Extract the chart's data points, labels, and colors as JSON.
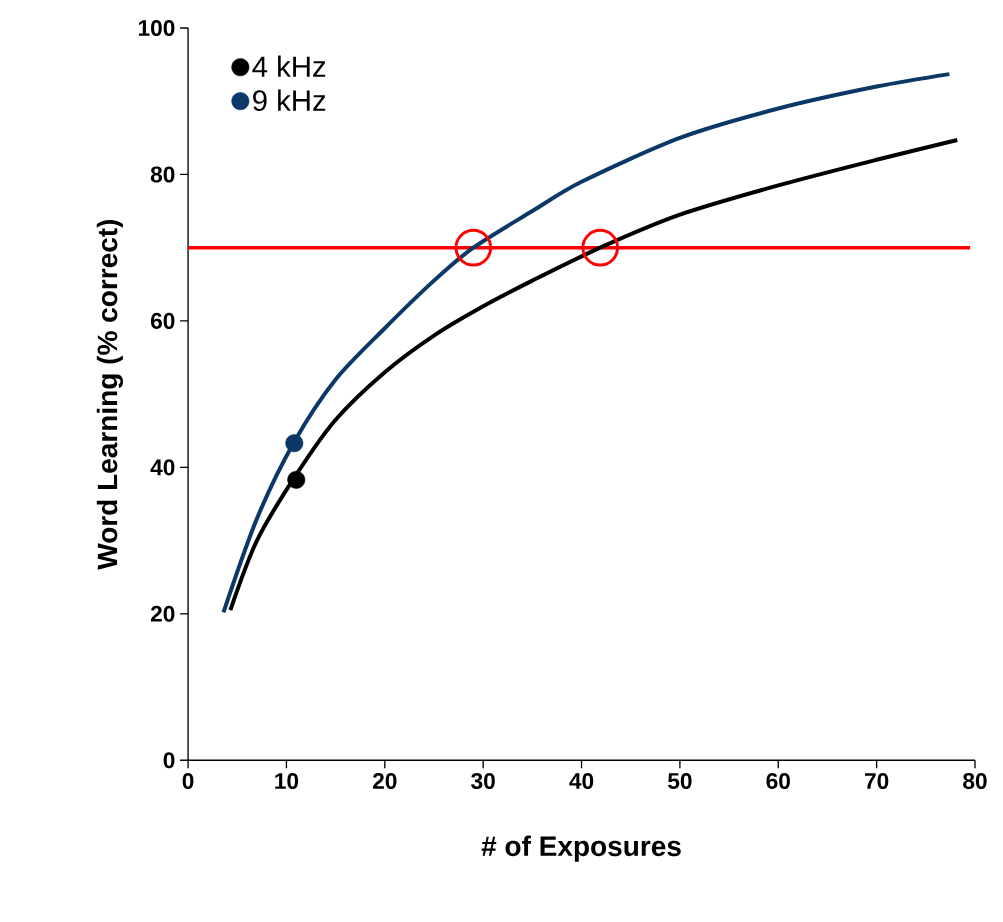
{
  "chart_data": {
    "type": "line",
    "xlabel": "# of Exposures",
    "ylabel": "Word Learning (% correct)",
    "xlim": [
      0,
      80
    ],
    "ylim": [
      0,
      100
    ],
    "xticks": [
      0,
      10,
      20,
      30,
      40,
      50,
      60,
      70,
      80
    ],
    "yticks": [
      0,
      20,
      40,
      60,
      80,
      100
    ],
    "grid": false,
    "legend": "top left",
    "series": [
      {
        "color": "#000000",
        "marker": "none",
        "x": [
          4.3,
          7,
          11,
          15,
          20,
          25,
          30,
          35,
          41.9,
          50,
          60,
          70,
          78.2
        ],
        "values": [
          20.5,
          30,
          39,
          46.5,
          53,
          58,
          62,
          65.5,
          70,
          74.5,
          78.5,
          82,
          84.7
        ]
      },
      {
        "color": "#0b3866",
        "marker": "none",
        "x": [
          3.6,
          7,
          10.8,
          15,
          20,
          25,
          29,
          35,
          40,
          50,
          60,
          70,
          77.4
        ],
        "values": [
          20.2,
          33,
          43.5,
          52,
          59,
          65.5,
          70,
          75,
          79,
          85,
          89,
          92,
          93.7
        ]
      },
      {
        "type": "scatter",
        "name": "4 kHz",
        "color": "#000000",
        "marker": "circle",
        "x": [
          11
        ],
        "values": [
          38.3
        ]
      },
      {
        "type": "scatter",
        "name": "9 kHz",
        "color": "#0b3866",
        "marker": "circle",
        "x": [
          10.8
        ],
        "values": [
          43.3
        ]
      },
      {
        "type": "scatter",
        "color": "#ff0000",
        "marker": "circle",
        "x": [
          29,
          41.9
        ],
        "values": [
          70,
          70
        ]
      }
    ],
    "ref_lines": [
      {
        "axis": "y",
        "value": 70,
        "color": "#ff0000",
        "line_style": "solid"
      }
    ]
  }
}
